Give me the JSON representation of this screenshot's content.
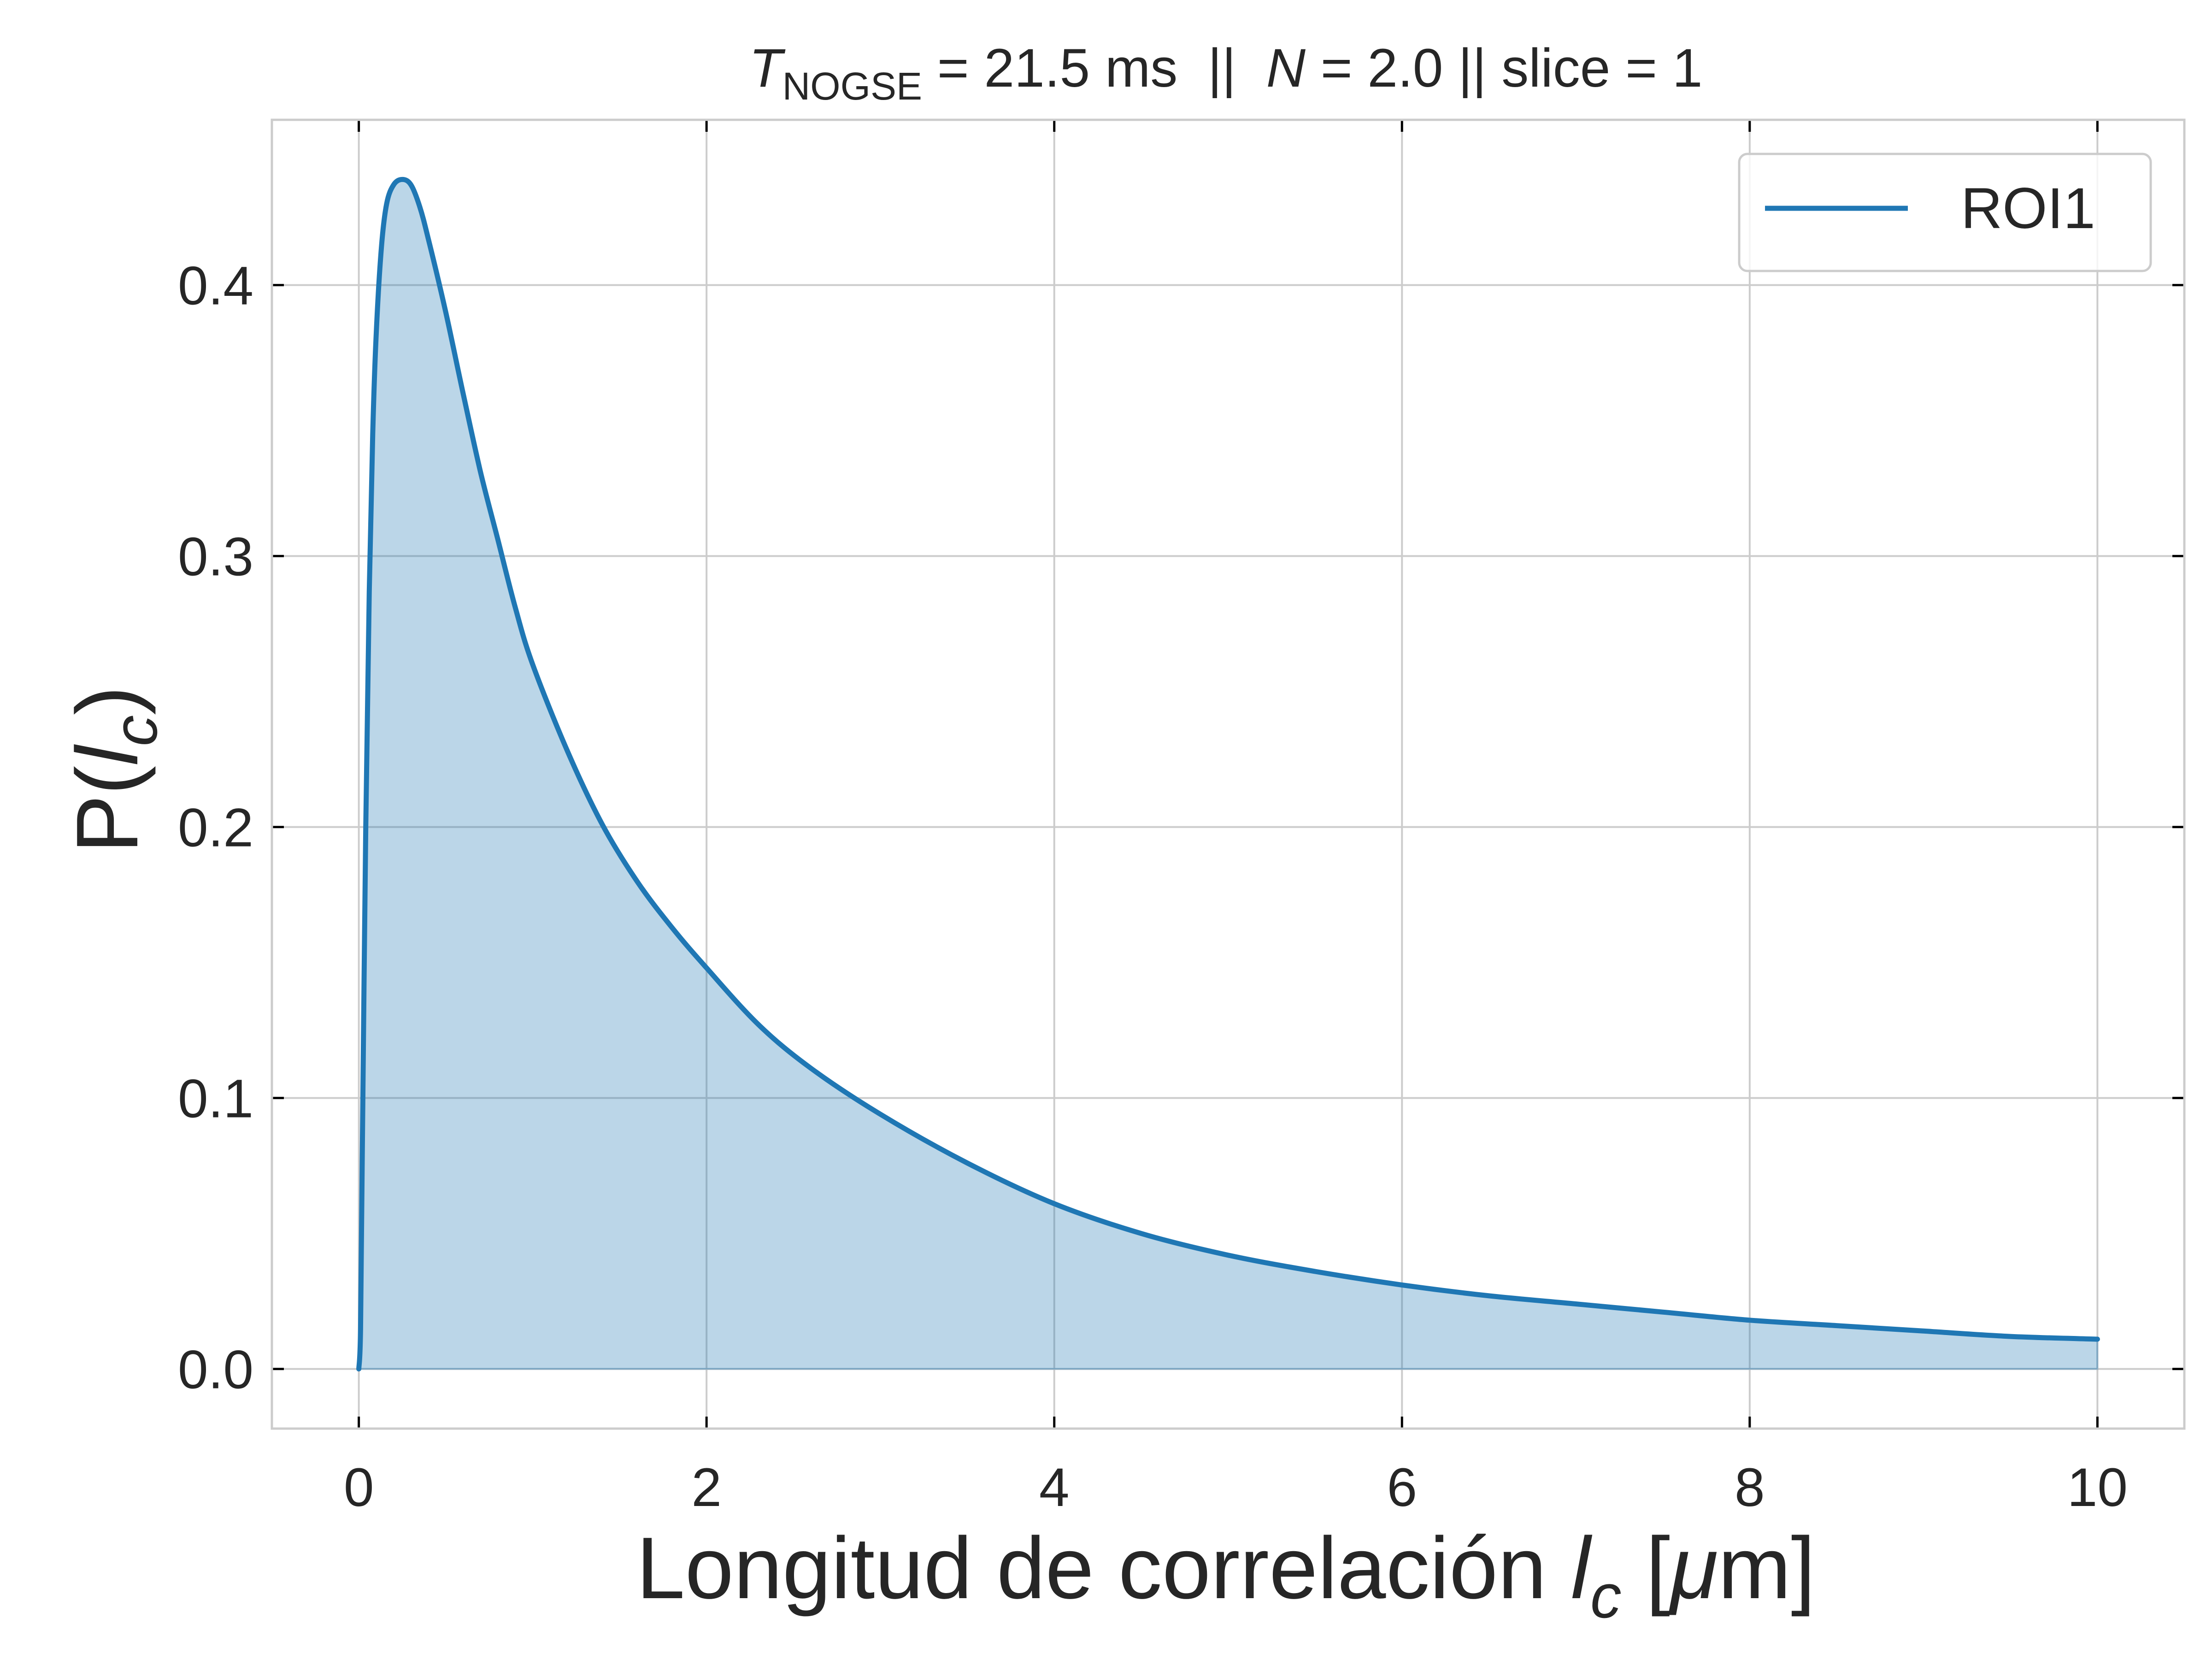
{
  "chart_data": {
    "type": "area",
    "title": {
      "t_symbol": "T",
      "t_subscript": "NOGSE",
      "t_value": " = 21.5 ms  ||  ",
      "n_symbol": "N",
      "n_value": " = 2.0 || slice = 1"
    },
    "xlabel": {
      "prefix": "Longitud de correlación ",
      "symbol": "l",
      "subscript": "c",
      "unit_open": " [",
      "unit_mu": "μ",
      "unit_close": "m]"
    },
    "ylabel": {
      "prefix": "P(",
      "symbol": "l",
      "subscript": "c",
      "suffix": ")"
    },
    "xlim": [
      -0.5,
      10.5
    ],
    "ylim": [
      -0.022,
      0.461
    ],
    "x_ticks": [
      0,
      2,
      4,
      6,
      8,
      10
    ],
    "x_tick_labels": [
      "0",
      "2",
      "4",
      "6",
      "8",
      "10"
    ],
    "y_ticks": [
      0.0,
      0.1,
      0.2,
      0.3,
      0.4
    ],
    "y_tick_labels": [
      "0.0",
      "0.1",
      "0.2",
      "0.3",
      "0.4"
    ],
    "grid": true,
    "legend_position": "top-right",
    "series": [
      {
        "name": "ROI1",
        "color": "#1f77b4",
        "fill_color": "#1f77b4",
        "fill_opacity": 0.3,
        "x": [
          0,
          0.01,
          0.02,
          0.04,
          0.06,
          0.08,
          0.1,
          0.13,
          0.16,
          0.2,
          0.25,
          0.3,
          0.35,
          0.4,
          0.5,
          0.6,
          0.7,
          0.8,
          0.9,
          1.0,
          1.2,
          1.4,
          1.6,
          1.8,
          2.0,
          2.3,
          2.6,
          3.0,
          3.5,
          4.0,
          4.5,
          5.0,
          5.5,
          6.0,
          6.5,
          7.0,
          7.5,
          8.0,
          8.5,
          9.0,
          9.5,
          10.0
        ],
        "y": [
          0.0,
          0.015,
          0.08,
          0.2,
          0.287,
          0.345,
          0.382,
          0.414,
          0.43,
          0.437,
          0.439,
          0.437,
          0.429,
          0.417,
          0.39,
          0.36,
          0.331,
          0.306,
          0.281,
          0.26,
          0.228,
          0.201,
          0.18,
          0.163,
          0.148,
          0.127,
          0.111,
          0.094,
          0.076,
          0.061,
          0.05,
          0.042,
          0.036,
          0.031,
          0.027,
          0.024,
          0.021,
          0.018,
          0.016,
          0.014,
          0.012,
          0.011
        ]
      }
    ]
  }
}
